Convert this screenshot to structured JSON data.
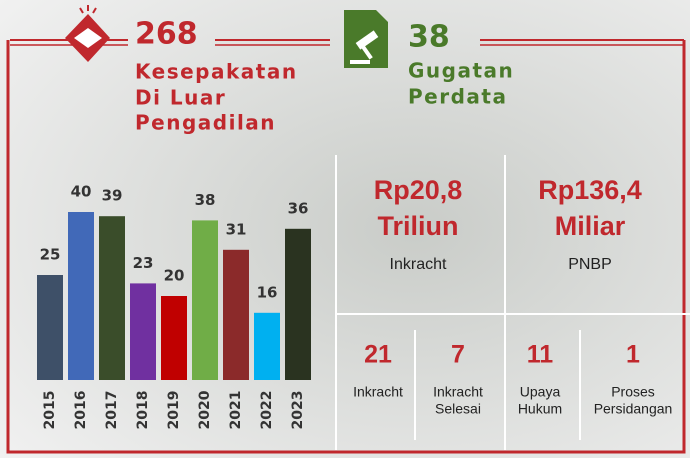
{
  "header": {
    "left": {
      "value": "268",
      "lines": [
        "Kesepakatan",
        "Di Luar",
        "Pengadilan"
      ]
    },
    "right": {
      "value": "38",
      "lines": [
        "Gugatan",
        "Perdata"
      ]
    }
  },
  "chart_data": {
    "type": "bar",
    "categories": [
      "2015",
      "2016",
      "2017",
      "2018",
      "2019",
      "2020",
      "2021",
      "2022",
      "2023"
    ],
    "values": [
      25,
      40,
      39,
      23,
      20,
      38,
      31,
      16,
      36
    ],
    "colors": [
      "#3e5068",
      "#4169b8",
      "#3a4d2a",
      "#7030a0",
      "#c00000",
      "#70ad47",
      "#8b2a2a",
      "#00b0f0",
      "#2a3320"
    ]
  },
  "stats": {
    "big": [
      {
        "amount": [
          "Rp20,8",
          "Triliun"
        ],
        "label": "Inkracht"
      },
      {
        "amount": [
          "Rp136,4",
          "Miliar"
        ],
        "label": "PNBP"
      }
    ],
    "small": [
      {
        "value": "21",
        "label": [
          "Inkracht"
        ]
      },
      {
        "value": "7",
        "label": [
          "Inkracht",
          "Selesai"
        ]
      },
      {
        "value": "11",
        "label": [
          "Upaya",
          "Hukum"
        ]
      },
      {
        "value": "1",
        "label": [
          "Proses",
          "Persidangan"
        ]
      }
    ]
  }
}
